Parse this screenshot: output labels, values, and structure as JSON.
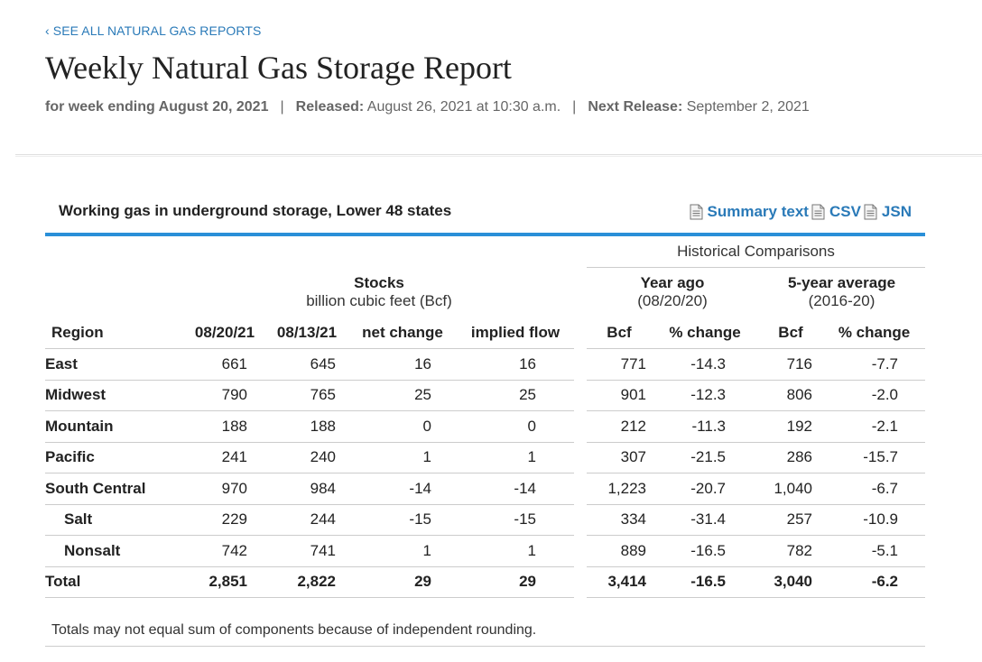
{
  "header": {
    "back_link": "‹ SEE ALL NATURAL GAS REPORTS",
    "title": "Weekly Natural Gas Storage Report",
    "week_ending": "for week ending August 20, 2021",
    "released_label": "Released:",
    "released_value": "August 26, 2021 at 10:30 a.m.",
    "next_release_label": "Next Release:",
    "next_release_value": "September 2, 2021",
    "separator": "|"
  },
  "table": {
    "title": "Working gas in underground storage, Lower 48 states",
    "links": {
      "summary": "Summary text",
      "csv": "CSV",
      "json": "JSN"
    },
    "historical_header": "Historical Comparisons",
    "stocks_header": "Stocks",
    "stocks_sub": "billion cubic feet (Bcf)",
    "year_ago_header": "Year ago",
    "year_ago_sub": "(08/20/20)",
    "five_year_header": "5-year average",
    "five_year_sub": "(2016-20)",
    "columns": [
      "Region",
      "08/20/21",
      "08/13/21",
      "net change",
      "implied flow",
      "Bcf",
      "% change",
      "Bcf",
      "% change"
    ],
    "rows": [
      {
        "region": "East",
        "sub": false,
        "cells": [
          "661",
          "645",
          "16",
          "16",
          "771",
          "-14.3",
          "716",
          "-7.7"
        ]
      },
      {
        "region": "Midwest",
        "sub": false,
        "cells": [
          "790",
          "765",
          "25",
          "25",
          "901",
          "-12.3",
          "806",
          "-2.0"
        ]
      },
      {
        "region": "Mountain",
        "sub": false,
        "cells": [
          "188",
          "188",
          "0",
          "0",
          "212",
          "-11.3",
          "192",
          "-2.1"
        ]
      },
      {
        "region": "Pacific",
        "sub": false,
        "cells": [
          "241",
          "240",
          "1",
          "1",
          "307",
          "-21.5",
          "286",
          "-15.7"
        ]
      },
      {
        "region": "South Central",
        "sub": false,
        "cells": [
          "970",
          "984",
          "-14",
          "-14",
          "1,223",
          "-20.7",
          "1,040",
          "-6.7"
        ]
      },
      {
        "region": "Salt",
        "sub": true,
        "cells": [
          "229",
          "244",
          "-15",
          "-15",
          "334",
          "-31.4",
          "257",
          "-10.9"
        ]
      },
      {
        "region": "Nonsalt",
        "sub": true,
        "cells": [
          "742",
          "741",
          "1",
          "1",
          "889",
          "-16.5",
          "782",
          "-5.1"
        ]
      }
    ],
    "total": {
      "region": "Total",
      "cells": [
        "2,851",
        "2,822",
        "29",
        "29",
        "3,414",
        "-16.5",
        "3,040",
        "-6.2"
      ]
    },
    "footnote": "Totals may not equal sum of components because of independent rounding."
  },
  "colors": {
    "link": "#2a7ab8",
    "rule": "#2a8fd8"
  }
}
